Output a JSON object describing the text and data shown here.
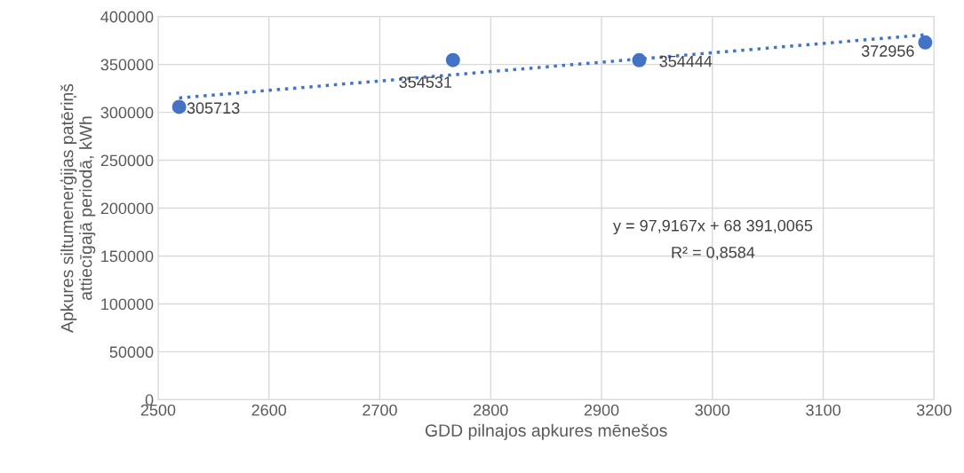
{
  "chart_data": {
    "type": "scatter",
    "xlabel": "GDD pilnajos apkures mēnešos",
    "ylabel": "Apkures siltumenerģijas patēriņš\nattiecīgajā periodā, kWh",
    "series": [
      {
        "color": "#4472c4",
        "x": [
          2519,
          2766,
          2934,
          3192
        ],
        "values": [
          305713,
          354531,
          354444,
          372956
        ],
        "marker": "circle",
        "data_labels": true
      },
      {
        "type": "line",
        "color": "#4472c4",
        "x": [
          2519,
          3192
        ],
        "values": [
          315000,
          381000
        ],
        "line_style": "dotted",
        "marker": "none"
      }
    ],
    "annotations": [
      "y = 97,9167x + 68 391,0065",
      "R² = 0,8584"
    ],
    "xlim": [
      2500,
      3200
    ],
    "xticks": [
      2500,
      2600,
      2700,
      2800,
      2900,
      3000,
      3100,
      3200
    ],
    "ylim": [
      0,
      400000
    ],
    "yticks": [
      0,
      50000,
      100000,
      150000,
      200000,
      250000,
      300000,
      350000,
      400000
    ],
    "grid": true
  }
}
